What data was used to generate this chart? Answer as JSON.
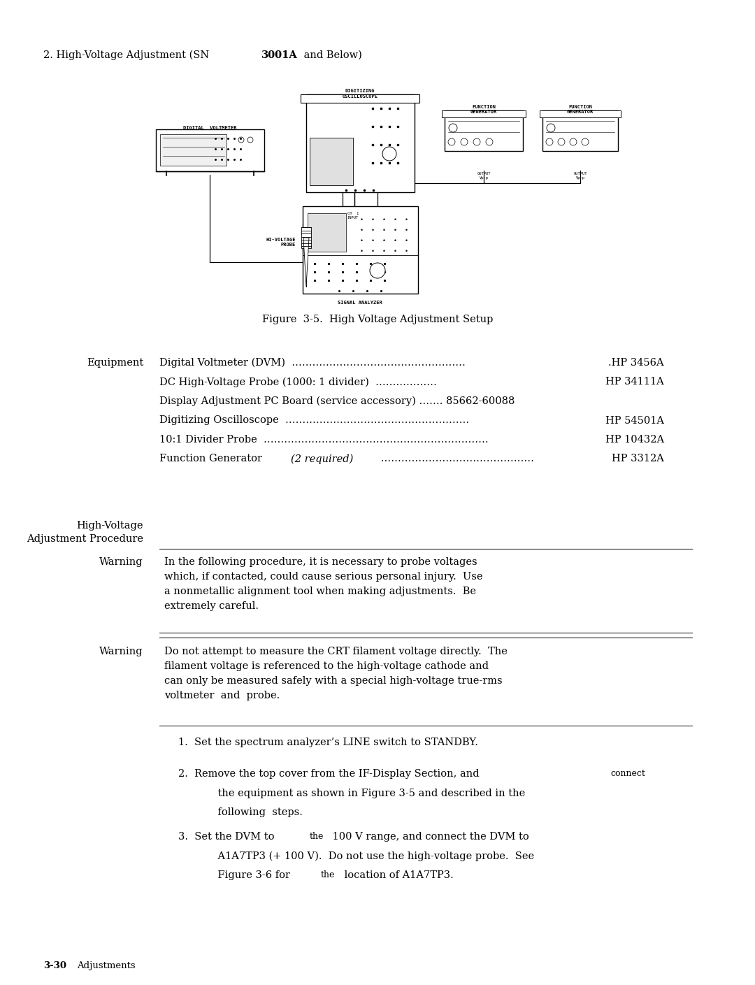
{
  "bg_color": "#ffffff",
  "text_color": "#000000",
  "page_width": 10.8,
  "page_height": 14.09,
  "header_prefix": "2. High-Voltage Adjustment (SN ",
  "header_bold": "3001A",
  "header_suffix": " and Below)",
  "figure_caption": "Figure  3-5.  High Voltage Adjustment Setup",
  "eq_label": "Equipment",
  "eq_line1_text": "Digital Voltmeter (DVM) ",
  "eq_line1_dots": " …………………………………… ",
  "eq_line1_model": ".HP 3456A",
  "eq_line2_text": "DC High-Voltage Probe (1000: 1 divider)  ",
  "eq_line2_dots": "………………… ",
  "eq_line2_model": "HP 34111A",
  "eq_line3_text": "Display Adjustment PC Board (service accessory) ……. 85662-60088",
  "eq_line4_text": "Digitizing Oscilloscope ",
  "eq_line4_dots": "……………………………………… ",
  "eq_line4_model": "HP 54501A",
  "eq_line5_text": "10:1 Divider Probe ",
  "eq_line5_dots": "…………………………………………… ",
  "eq_line5_model": "HP 10432A",
  "eq_line6_pre": "Function Generator ",
  "eq_line6_italic": "(2 required)",
  "eq_line6_dots": " …………………………… ",
  "eq_line6_model": "HP 3312A",
  "hv_section": "High-Voltage\nAdjustment Procedure",
  "warn_label": "Warning",
  "warn1": "In the following procedure, it is necessary to probe voltages\nwhich, if contacted, could cause serious personal injury.  Use\na nonmetallic alignment tool when making adjustments.  Be\nextremely careful.",
  "warn2": "Do not attempt to measure the CRT filament voltage directly.  The\nfilament voltage is referenced to the high-voltage cathode and\ncan only be measured safely with a special high-voltage true-rms\nvoltmeter  and  probe.",
  "step1": "1.  Set the spectrum analyzer’s LINE switch to STANDBY.",
  "step2a": "2.  Remove the top cover from the IF-Display Section, and ",
  "step2a_small": "connect",
  "step2b": "    the equipment as shown in Figure 3-5 and described in the",
  "step2c": "    following  steps.",
  "step3a": "3.  Set the DVM to ",
  "step3a_small": "the",
  "step3a2": " 100 V range, and connect the DVM to",
  "step3b": "    A1A7TP3 (+ 100 V).  Do not use the high-voltage probe.  See",
  "step3c_pre": "    Figure 3-6 for ",
  "step3c_small": "the",
  "step3c_post": " location of A1A7TP3.",
  "footer_num": "3-30",
  "footer_text": "Adjustments"
}
